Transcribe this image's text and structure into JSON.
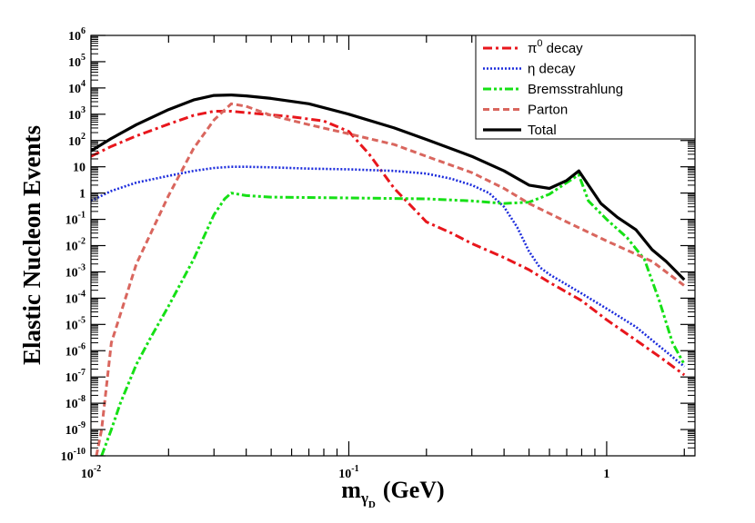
{
  "chart_data": {
    "type": "line",
    "title": "",
    "xlabel": "m",
    "xlabel_sub_1": "γ",
    "xlabel_sub_2": "D",
    "xlabel_unit": "(GeV)",
    "ylabel": "Elastic Nucleon Events",
    "xscale": "log",
    "yscale": "log",
    "xlim": [
      0.01,
      2.2
    ],
    "ylim": [
      1e-10,
      1000000.0
    ],
    "x_ticks": [
      {
        "value": 0.01,
        "base": "10",
        "exp": "-2"
      },
      {
        "value": 0.1,
        "base": "10",
        "exp": "-1"
      },
      {
        "value": 1,
        "base": "1",
        "exp": ""
      }
    ],
    "y_ticks": [
      {
        "value": 1e-10,
        "base": "10",
        "exp": "-10"
      },
      {
        "value": 1e-09,
        "base": "10",
        "exp": "-9"
      },
      {
        "value": 1e-08,
        "base": "10",
        "exp": "-8"
      },
      {
        "value": 1e-07,
        "base": "10",
        "exp": "-7"
      },
      {
        "value": 1e-06,
        "base": "10",
        "exp": "-6"
      },
      {
        "value": 1e-05,
        "base": "10",
        "exp": "-5"
      },
      {
        "value": 0.0001,
        "base": "10",
        "exp": "-4"
      },
      {
        "value": 0.001,
        "base": "10",
        "exp": "-3"
      },
      {
        "value": 0.01,
        "base": "10",
        "exp": "-2"
      },
      {
        "value": 0.1,
        "base": "10",
        "exp": "-1"
      },
      {
        "value": 1,
        "base": "1",
        "exp": ""
      },
      {
        "value": 10,
        "base": "10",
        "exp": ""
      },
      {
        "value": 100,
        "base": "10",
        "exp": "2"
      },
      {
        "value": 1000,
        "base": "10",
        "exp": "3"
      },
      {
        "value": 10000,
        "base": "10",
        "exp": "4"
      },
      {
        "value": 100000,
        "base": "10",
        "exp": "5"
      },
      {
        "value": 1000000,
        "base": "10",
        "exp": "6"
      }
    ],
    "legend_position": "top-right",
    "series": [
      {
        "name": "π0 decay",
        "legend_label": "π",
        "legend_sup": "0",
        "legend_suffix": " decay",
        "color": "#e8161c",
        "dash": "dashdot",
        "points": [
          [
            0.01,
            25
          ],
          [
            0.012,
            60
          ],
          [
            0.015,
            150
          ],
          [
            0.02,
            420
          ],
          [
            0.025,
            900
          ],
          [
            0.03,
            1300
          ],
          [
            0.035,
            1300
          ],
          [
            0.04,
            1150
          ],
          [
            0.05,
            950
          ],
          [
            0.06,
            800
          ],
          [
            0.08,
            550
          ],
          [
            0.1,
            220
          ],
          [
            0.12,
            30
          ],
          [
            0.15,
            1.5
          ],
          [
            0.2,
            0.08
          ],
          [
            0.25,
            0.03
          ],
          [
            0.3,
            0.012
          ],
          [
            0.4,
            0.0035
          ],
          [
            0.5,
            0.0012
          ],
          [
            0.6,
            0.0004
          ],
          [
            0.8,
            8e-05
          ],
          [
            1.0,
            1.5e-05
          ],
          [
            1.3,
            2.5e-06
          ],
          [
            1.6,
            6e-07
          ],
          [
            2.0,
            1.2e-07
          ]
        ]
      },
      {
        "name": "η decay",
        "legend_label": "η decay",
        "color": "#1c2cdc",
        "dash": "dotted",
        "points": [
          [
            0.01,
            0.5
          ],
          [
            0.012,
            1.2
          ],
          [
            0.015,
            2.5
          ],
          [
            0.02,
            4.5
          ],
          [
            0.025,
            7
          ],
          [
            0.03,
            9
          ],
          [
            0.035,
            10
          ],
          [
            0.04,
            10
          ],
          [
            0.05,
            9.5
          ],
          [
            0.07,
            8.5
          ],
          [
            0.1,
            8
          ],
          [
            0.15,
            7
          ],
          [
            0.2,
            5.5
          ],
          [
            0.25,
            3.5
          ],
          [
            0.3,
            2
          ],
          [
            0.35,
            1
          ],
          [
            0.4,
            0.3
          ],
          [
            0.45,
            0.05
          ],
          [
            0.5,
            0.006
          ],
          [
            0.55,
            0.0015
          ],
          [
            0.6,
            0.0008
          ],
          [
            0.8,
            0.00015
          ],
          [
            1.0,
            4e-05
          ],
          [
            1.3,
            8e-06
          ],
          [
            1.6,
            1.5e-06
          ],
          [
            2.0,
            2.5e-07
          ]
        ]
      },
      {
        "name": "Bremsstrahlung",
        "legend_label": "Bremsstrahlung",
        "color": "#16e016",
        "dash": "dashdotdot",
        "points": [
          [
            0.011,
            1e-10
          ],
          [
            0.012,
            1e-09
          ],
          [
            0.013,
            1e-08
          ],
          [
            0.015,
            3e-07
          ],
          [
            0.017,
            3e-06
          ],
          [
            0.02,
            5e-05
          ],
          [
            0.025,
            0.003
          ],
          [
            0.03,
            0.15
          ],
          [
            0.033,
            0.6
          ],
          [
            0.035,
            1
          ],
          [
            0.04,
            0.8
          ],
          [
            0.05,
            0.7
          ],
          [
            0.1,
            0.65
          ],
          [
            0.2,
            0.6
          ],
          [
            0.3,
            0.5
          ],
          [
            0.4,
            0.4
          ],
          [
            0.5,
            0.45
          ],
          [
            0.6,
            0.9
          ],
          [
            0.7,
            2.5
          ],
          [
            0.78,
            5
          ],
          [
            0.85,
            0.5
          ],
          [
            1.0,
            0.1
          ],
          [
            1.2,
            0.02
          ],
          [
            1.4,
            0.003
          ],
          [
            1.6,
            8e-05
          ],
          [
            1.8,
            2e-06
          ],
          [
            2.0,
            3e-07
          ]
        ]
      },
      {
        "name": "Parton",
        "legend_label": "Parton",
        "color": "#d9665e",
        "dash": "dashed",
        "points": [
          [
            0.0105,
            1e-10
          ],
          [
            0.011,
            1e-09
          ],
          [
            0.012,
            2e-06
          ],
          [
            0.015,
            0.002
          ],
          [
            0.02,
            0.8
          ],
          [
            0.025,
            50
          ],
          [
            0.03,
            600
          ],
          [
            0.035,
            2500
          ],
          [
            0.04,
            2000
          ],
          [
            0.05,
            900
          ],
          [
            0.07,
            400
          ],
          [
            0.1,
            180
          ],
          [
            0.15,
            70
          ],
          [
            0.2,
            25
          ],
          [
            0.3,
            6
          ],
          [
            0.4,
            1.5
          ],
          [
            0.5,
            0.4
          ],
          [
            0.7,
            0.08
          ],
          [
            1.0,
            0.015
          ],
          [
            1.5,
            0.0025
          ],
          [
            2.0,
            0.0003
          ]
        ]
      },
      {
        "name": "Total",
        "legend_label": "Total",
        "color": "#000000",
        "dash": "solid",
        "points": [
          [
            0.01,
            40
          ],
          [
            0.012,
            120
          ],
          [
            0.015,
            400
          ],
          [
            0.02,
            1500
          ],
          [
            0.025,
            3500
          ],
          [
            0.03,
            5200
          ],
          [
            0.035,
            5400
          ],
          [
            0.04,
            5000
          ],
          [
            0.05,
            4000
          ],
          [
            0.07,
            2500
          ],
          [
            0.1,
            1000
          ],
          [
            0.15,
            300
          ],
          [
            0.2,
            110
          ],
          [
            0.3,
            25
          ],
          [
            0.4,
            7
          ],
          [
            0.5,
            2
          ],
          [
            0.6,
            1.5
          ],
          [
            0.7,
            3
          ],
          [
            0.78,
            7
          ],
          [
            0.85,
            2
          ],
          [
            0.95,
            0.4
          ],
          [
            1.1,
            0.12
          ],
          [
            1.3,
            0.04
          ],
          [
            1.5,
            0.007
          ],
          [
            1.7,
            0.0025
          ],
          [
            2.0,
            0.0005
          ]
        ]
      }
    ]
  }
}
